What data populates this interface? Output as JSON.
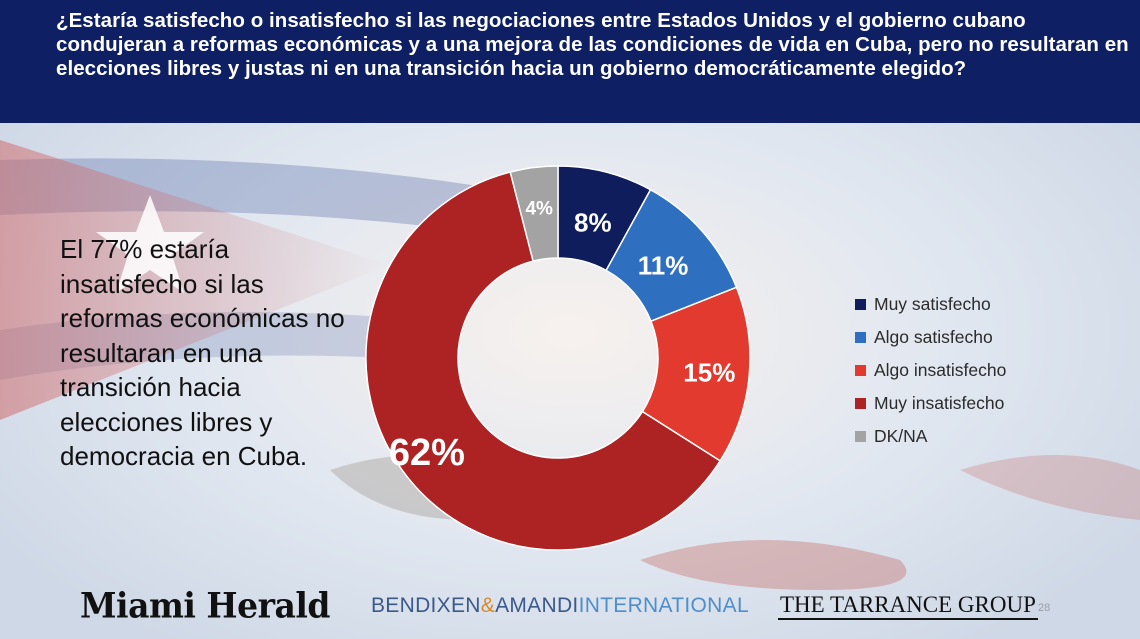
{
  "header": {
    "question": "¿Estaría satisfecho o insatisfecho si las negociaciones entre Estados Unidos y el gobierno cubano condujeran a reformas económicas y a una mejora de las condiciones de vida en Cuba, pero no resultaran en elecciones libres y justas ni en una transición hacia un gobierno democráticamente elegido?"
  },
  "summary": {
    "text": "El 77% estaría insatisfecho si las reformas económicas no resultaran en una transición hacia elecciones libres y democracia en Cuba."
  },
  "chart_data": {
    "type": "pie",
    "variant": "donut",
    "title": "",
    "categories": [
      "Muy satisfecho",
      "Algo satisfecho",
      "Algo insatisfecho",
      "Muy insatisfecho",
      "DK/NA"
    ],
    "values": [
      8,
      11,
      15,
      62,
      4
    ],
    "labels": [
      "8%",
      "11%",
      "15%",
      "62%",
      "4%"
    ],
    "colors": [
      "#0f1d5c",
      "#2e6fc0",
      "#e23a2e",
      "#ad2222",
      "#a3a3a3"
    ],
    "unit": "%",
    "start": "top",
    "direction": "clockwise",
    "legend_position": "right"
  },
  "legend": {
    "items": [
      {
        "label": "Muy satisfecho",
        "color": "#0f1d5c"
      },
      {
        "label": "Algo satisfecho",
        "color": "#2e6fc0"
      },
      {
        "label": "Algo insatisfecho",
        "color": "#e23a2e"
      },
      {
        "label": "Muy insatisfecho",
        "color": "#ad2222"
      },
      {
        "label": "DK/NA",
        "color": "#a3a3a3"
      }
    ]
  },
  "footer": {
    "logo_herald": "Miami Herald",
    "logo_ba_left": "BENDIXEN",
    "logo_ba_amp": "&",
    "logo_ba_mid": "AMANDI",
    "logo_ba_right": "INTERNATIONAL",
    "logo_tarrance": "THE TARRANCE GROUP",
    "page_number": "28"
  }
}
